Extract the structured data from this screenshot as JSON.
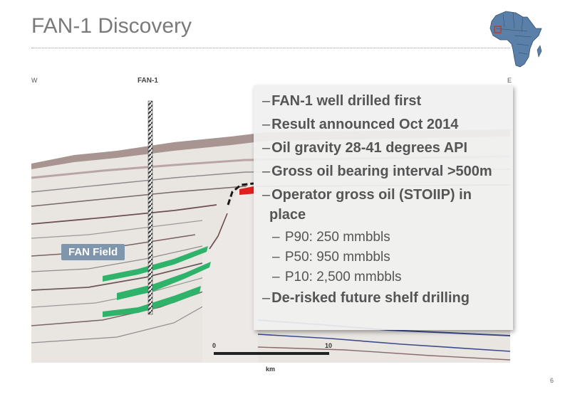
{
  "slide": {
    "title": "FAN-1 Discovery",
    "page_number": "6"
  },
  "section": {
    "west_label": "W",
    "east_label": "E",
    "well_label": "FAN-1",
    "field_label": "FAN Field",
    "scale": {
      "start": "0",
      "end": "10",
      "unit": "km"
    }
  },
  "bullets": [
    {
      "dash": "–",
      "text": "FAN-1 well drilled first"
    },
    {
      "dash": "–",
      "text": "Result announced Oct 2014"
    },
    {
      "dash": "–",
      "text": "Oil gravity 28-41 degrees API"
    },
    {
      "dash": "–",
      "text": "Gross oil bearing interval >500m"
    },
    {
      "dash": "–",
      "text": "Operator gross oil (STOIIP) in",
      "text2": "place"
    },
    {
      "dash": "–",
      "text": "P90: 250 mmbbls",
      "sub": true
    },
    {
      "dash": "–",
      "text": "P50: 950 mmbbls",
      "sub": true
    },
    {
      "dash": "–",
      "text": "P10: 2,500 mmbbls",
      "sub": true
    },
    {
      "dash": "–",
      "text": "De-risked future shelf drilling"
    }
  ],
  "colors": {
    "title": "#7a7a7a",
    "africa_fill": "#5a7fa8",
    "reservoir_green": "#2fb36a",
    "reservoir_red": "#e0201c",
    "label_box": "#8096ac"
  },
  "icons": [
    "africa-map-icon",
    "location-marker-icon"
  ]
}
